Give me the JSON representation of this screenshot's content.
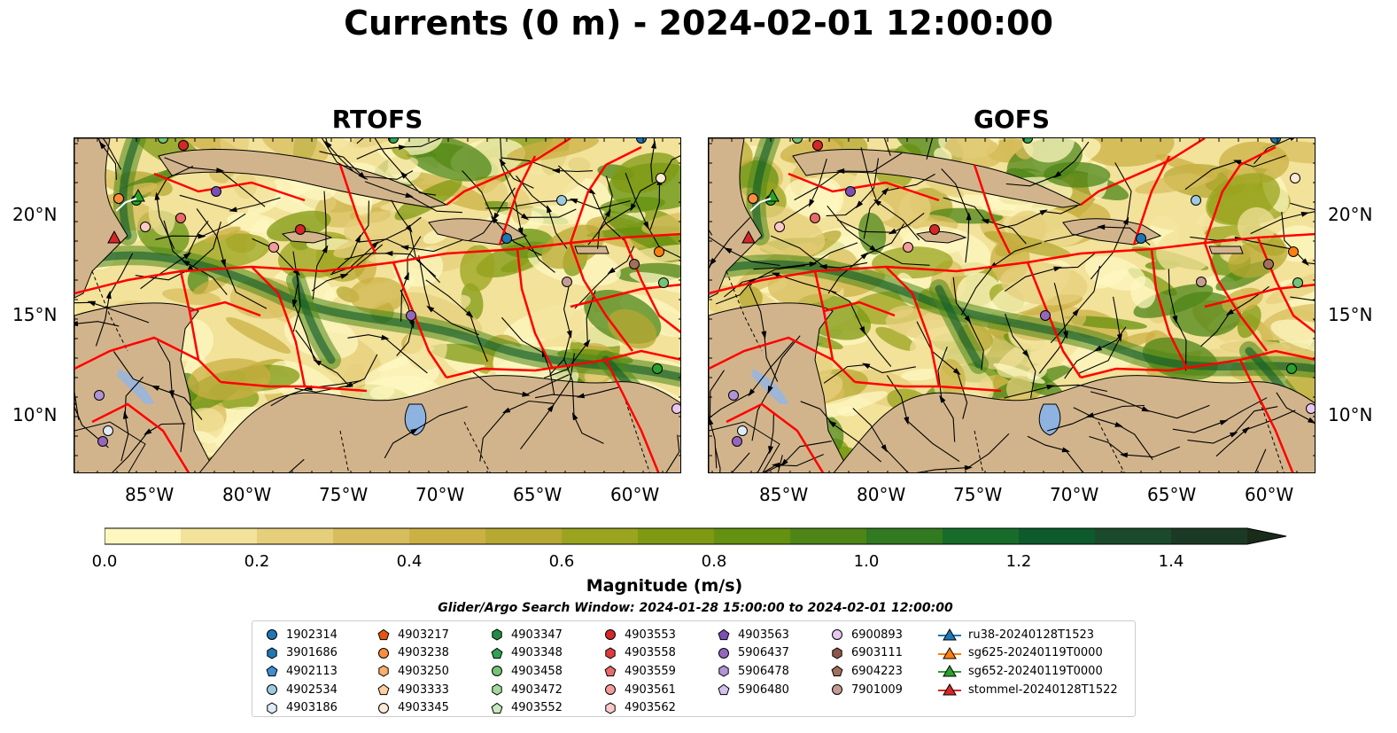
{
  "title": "Currents (0 m) - 2024-02-01 12:00:00",
  "panels": [
    {
      "title": "RTOFS"
    },
    {
      "title": "GOFS"
    }
  ],
  "axes": {
    "lon_labels": [
      "85°W",
      "80°W",
      "75°W",
      "70°W",
      "65°W",
      "60°W"
    ],
    "lat_labels": [
      "20°N",
      "15°N",
      "10°N"
    ]
  },
  "colorbar": {
    "label": "Magnitude (m/s)",
    "ticks": [
      "0.0",
      "0.2",
      "0.4",
      "0.6",
      "0.8",
      "1.0",
      "1.2",
      "1.4"
    ],
    "min": 0.0,
    "max": 1.5,
    "step": 0.1,
    "extend": "max",
    "colors": [
      "#fef7c0",
      "#f2e29a",
      "#e6cf7c",
      "#d8bd5e",
      "#cbb044",
      "#b7a832",
      "#9aa41e",
      "#7f9a12",
      "#64910f",
      "#4d8617",
      "#317a20",
      "#176c2a",
      "#0d5a2c",
      "#1a4a2b",
      "#1b3a25",
      "#1a2b1a"
    ]
  },
  "legend": {
    "title": "Glider/Argo Search Window: 2024-01-28 15:00:00 to 2024-02-01 12:00:00",
    "columns": [
      [
        {
          "label": "1902314",
          "marker": "circle",
          "color": "#1f77b4"
        },
        {
          "label": "3901686",
          "marker": "hexagon",
          "color": "#1f77b4"
        },
        {
          "label": "4902113",
          "marker": "pentagon",
          "color": "#3d8fd1"
        },
        {
          "label": "4902534",
          "marker": "circle",
          "color": "#9ecae1"
        },
        {
          "label": "4903186",
          "marker": "hexagon",
          "color": "#deebf7"
        }
      ],
      [
        {
          "label": "4903217",
          "marker": "pentagon",
          "color": "#e6550d"
        },
        {
          "label": "4903238",
          "marker": "circle",
          "color": "#fd8d3c"
        },
        {
          "label": "4903250",
          "marker": "hexagon",
          "color": "#fdae6b"
        },
        {
          "label": "4903333",
          "marker": "pentagon",
          "color": "#fdd0a2"
        },
        {
          "label": "4903345",
          "marker": "circle",
          "color": "#feead6"
        }
      ],
      [
        {
          "label": "4903347",
          "marker": "hexagon",
          "color": "#238b45"
        },
        {
          "label": "4903348",
          "marker": "pentagon",
          "color": "#31a354"
        },
        {
          "label": "4903458",
          "marker": "circle",
          "color": "#74c476"
        },
        {
          "label": "4903472",
          "marker": "hexagon",
          "color": "#a1d99b"
        },
        {
          "label": "4903552",
          "marker": "pentagon",
          "color": "#c7e9c0"
        }
      ],
      [
        {
          "label": "4903553",
          "marker": "circle",
          "color": "#d62728"
        },
        {
          "label": "4903558",
          "marker": "hexagon",
          "color": "#de3b3b"
        },
        {
          "label": "4903559",
          "marker": "pentagon",
          "color": "#e86a6a"
        },
        {
          "label": "4903561",
          "marker": "circle",
          "color": "#f29c9c"
        },
        {
          "label": "4903562",
          "marker": "hexagon",
          "color": "#fcc9c9"
        }
      ],
      [
        {
          "label": "4903563",
          "marker": "pentagon",
          "color": "#7b4fb4"
        },
        {
          "label": "5906437",
          "marker": "circle",
          "color": "#9467bd"
        },
        {
          "label": "5906478",
          "marker": "hexagon",
          "color": "#b094d6"
        },
        {
          "label": "5906480",
          "marker": "pentagon",
          "color": "#d4c2ee"
        }
      ],
      [
        {
          "label": "6900893",
          "marker": "circle",
          "color": "#e7c7ef"
        },
        {
          "label": "6903111",
          "marker": "hexagon",
          "color": "#8c564b"
        },
        {
          "label": "6904223",
          "marker": "pentagon",
          "color": "#a0705d"
        },
        {
          "label": "7901009",
          "marker": "circle",
          "color": "#c49c94"
        }
      ],
      [
        {
          "label": "ru38-20240128T1523",
          "marker": "triangle-line",
          "color": "#1f77b4"
        },
        {
          "label": "sg625-20240119T0000",
          "marker": "triangle-line",
          "color": "#ff7f0e"
        },
        {
          "label": "sg652-20240119T0000",
          "marker": "triangle-line",
          "color": "#2ca02c"
        },
        {
          "label": "stommel-20240128T1522",
          "marker": "triangle-line",
          "color": "#d62728"
        }
      ]
    ]
  },
  "map_colors": {
    "land": "#d2b48c",
    "lake": "#8fb3e0",
    "eez": "#ff0000",
    "streamline": "#000000"
  }
}
